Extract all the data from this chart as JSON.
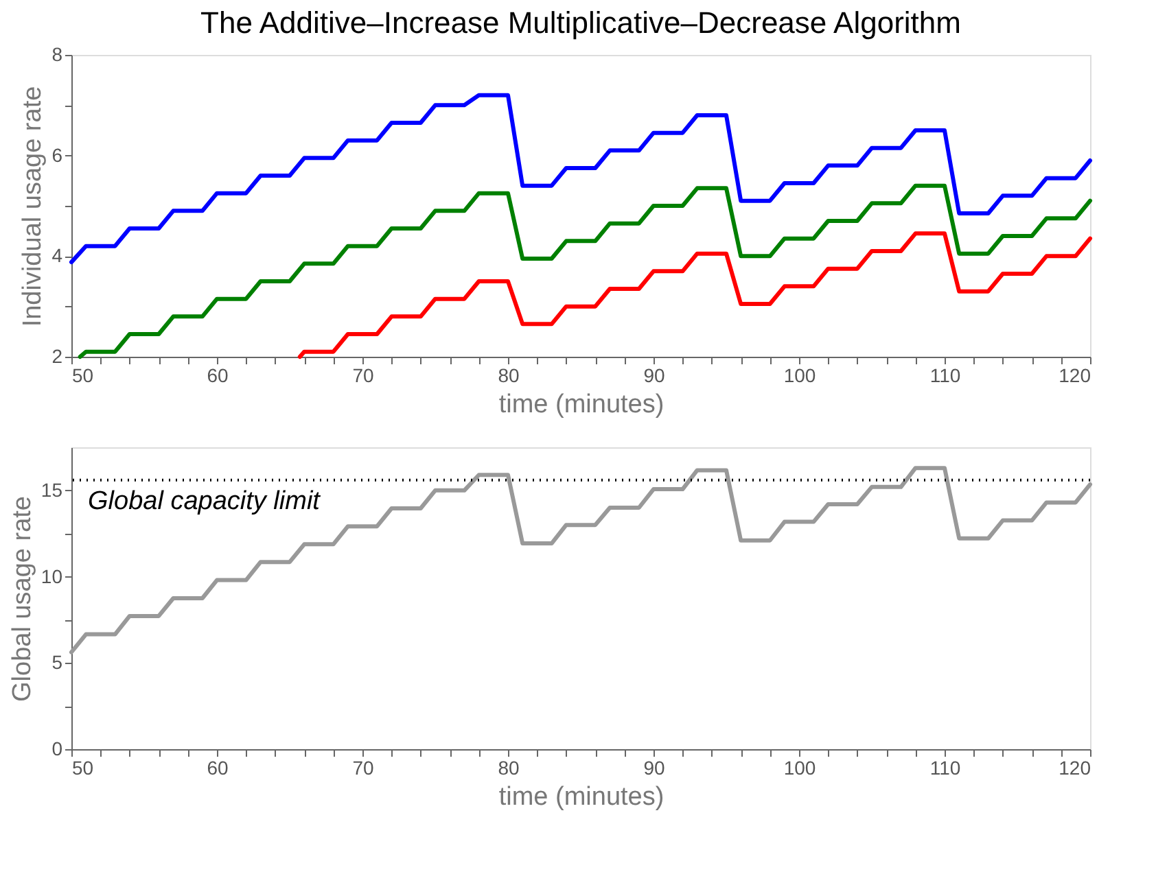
{
  "chart_data": [
    {
      "type": "line",
      "title": "The Additive–Increase Multiplicative–Decrease Algorithm",
      "xlabel": "time (minutes)",
      "ylabel": "Individual usage rate",
      "grid": false,
      "line_style": "solid",
      "marker": "none",
      "xlim": [
        50,
        120
      ],
      "xticks": [
        50,
        {
          "value": 52,
          "label": null
        },
        {
          "value": 54,
          "label": null
        },
        {
          "value": 56,
          "label": null
        },
        {
          "value": 58,
          "label": null
        },
        60,
        {
          "value": 62,
          "label": null
        },
        {
          "value": 64,
          "label": null
        },
        {
          "value": 66,
          "label": null
        },
        {
          "value": 68,
          "label": null
        },
        70,
        {
          "value": 72,
          "label": null
        },
        {
          "value": 74,
          "label": null
        },
        {
          "value": 76,
          "label": null
        },
        {
          "value": 78,
          "label": null
        },
        80,
        {
          "value": 82,
          "label": null
        },
        {
          "value": 84,
          "label": null
        },
        {
          "value": 86,
          "label": null
        },
        {
          "value": 88,
          "label": null
        },
        90,
        {
          "value": 92,
          "label": null
        },
        {
          "value": 94,
          "label": null
        },
        {
          "value": 96,
          "label": null
        },
        {
          "value": 98,
          "label": null
        },
        100,
        {
          "value": 102,
          "label": null
        },
        {
          "value": 104,
          "label": null
        },
        {
          "value": 106,
          "label": null
        },
        {
          "value": 108,
          "label": null
        },
        110,
        {
          "value": 112,
          "label": null
        },
        {
          "value": 114,
          "label": null
        },
        {
          "value": 116,
          "label": null
        },
        {
          "value": 118,
          "label": null
        },
        120
      ],
      "ylim": [
        2,
        8
      ],
      "yticks": [
        2,
        {
          "value": 3,
          "label": null
        },
        4,
        {
          "value": 5,
          "label": null
        },
        6,
        {
          "value": 7,
          "label": null
        },
        8
      ],
      "series": [
        {
          "color": "#0000ff",
          "x": [
            50,
            51,
            53,
            54,
            56,
            57,
            59,
            60,
            62,
            63,
            65,
            66,
            68,
            69,
            71,
            72,
            74,
            75,
            77,
            78,
            80,
            81,
            83,
            84,
            86,
            87,
            89,
            90,
            92,
            93,
            95,
            96,
            98,
            99,
            101,
            102,
            104,
            105,
            107,
            108,
            110,
            111,
            113,
            114,
            116,
            117,
            119,
            120
          ],
          "values": [
            3.88,
            4.2,
            4.2,
            4.55,
            4.55,
            4.9,
            4.9,
            5.25,
            5.25,
            5.6,
            5.6,
            5.95,
            5.95,
            6.3,
            6.3,
            6.65,
            6.65,
            7.0,
            7.0,
            7.2,
            7.2,
            5.4,
            5.4,
            5.75,
            5.75,
            6.1,
            6.1,
            6.45,
            6.45,
            6.8,
            6.8,
            5.1,
            5.1,
            5.45,
            5.45,
            5.8,
            5.8,
            6.15,
            6.15,
            6.5,
            6.5,
            4.85,
            4.85,
            5.2,
            5.2,
            5.55,
            5.55,
            5.9
          ]
        },
        {
          "color": "#008000",
          "x": [
            50.6,
            51,
            53,
            54,
            56,
            57,
            59,
            60,
            62,
            63,
            65,
            66,
            68,
            69,
            71,
            72,
            74,
            75,
            77,
            78,
            80,
            81,
            83,
            84,
            86,
            87,
            89,
            90,
            92,
            93,
            95,
            96,
            98,
            99,
            101,
            102,
            104,
            105,
            107,
            108,
            110,
            111,
            113,
            114,
            116,
            117,
            119,
            120
          ],
          "values": [
            2.0,
            2.1,
            2.1,
            2.45,
            2.45,
            2.8,
            2.8,
            3.15,
            3.15,
            3.5,
            3.5,
            3.85,
            3.85,
            4.2,
            4.2,
            4.55,
            4.55,
            4.9,
            4.9,
            5.25,
            5.25,
            3.95,
            3.95,
            4.3,
            4.3,
            4.65,
            4.65,
            5.0,
            5.0,
            5.35,
            5.35,
            4.0,
            4.0,
            4.35,
            4.35,
            4.7,
            4.7,
            5.05,
            5.05,
            5.4,
            5.4,
            4.05,
            4.05,
            4.4,
            4.4,
            4.75,
            4.75,
            5.1
          ]
        },
        {
          "color": "#ff0000",
          "x": [
            65.7,
            66,
            68,
            69,
            71,
            72,
            74,
            75,
            77,
            78,
            80,
            81,
            83,
            84,
            86,
            87,
            89,
            90,
            92,
            93,
            95,
            96,
            98,
            99,
            101,
            102,
            104,
            105,
            107,
            108,
            110,
            111,
            113,
            114,
            116,
            117,
            119,
            120
          ],
          "values": [
            2.0,
            2.1,
            2.1,
            2.45,
            2.45,
            2.8,
            2.8,
            3.15,
            3.15,
            3.5,
            3.5,
            2.65,
            2.65,
            3.0,
            3.0,
            3.35,
            3.35,
            3.7,
            3.7,
            4.05,
            4.05,
            3.05,
            3.05,
            3.4,
            3.4,
            3.75,
            3.75,
            4.1,
            4.1,
            4.45,
            4.45,
            3.3,
            3.3,
            3.65,
            3.65,
            4.0,
            4.0,
            4.35
          ]
        }
      ]
    },
    {
      "type": "line",
      "xlabel": "time (minutes)",
      "ylabel": "Global usage rate",
      "grid": false,
      "line_style": "solid",
      "marker": "none",
      "xlim": [
        50,
        120
      ],
      "xticks": [
        50,
        {
          "value": 52,
          "label": null
        },
        {
          "value": 54,
          "label": null
        },
        {
          "value": 56,
          "label": null
        },
        {
          "value": 58,
          "label": null
        },
        60,
        {
          "value": 62,
          "label": null
        },
        {
          "value": 64,
          "label": null
        },
        {
          "value": 66,
          "label": null
        },
        {
          "value": 68,
          "label": null
        },
        70,
        {
          "value": 72,
          "label": null
        },
        {
          "value": 74,
          "label": null
        },
        {
          "value": 76,
          "label": null
        },
        {
          "value": 78,
          "label": null
        },
        80,
        {
          "value": 82,
          "label": null
        },
        {
          "value": 84,
          "label": null
        },
        {
          "value": 86,
          "label": null
        },
        {
          "value": 88,
          "label": null
        },
        90,
        {
          "value": 92,
          "label": null
        },
        {
          "value": 94,
          "label": null
        },
        {
          "value": 96,
          "label": null
        },
        {
          "value": 98,
          "label": null
        },
        100,
        {
          "value": 102,
          "label": null
        },
        {
          "value": 104,
          "label": null
        },
        {
          "value": 106,
          "label": null
        },
        {
          "value": 108,
          "label": null
        },
        110,
        {
          "value": 112,
          "label": null
        },
        {
          "value": 114,
          "label": null
        },
        {
          "value": 116,
          "label": null
        },
        {
          "value": 118,
          "label": null
        },
        120
      ],
      "ylim": [
        0,
        17.5
      ],
      "yticks": [
        0,
        {
          "value": 2.5,
          "label": null
        },
        5,
        {
          "value": 7.5,
          "label": null
        },
        10,
        {
          "value": 12.5,
          "label": null
        },
        15
      ],
      "ref_lines": [
        {
          "axis": "y",
          "value": 15.6,
          "label": "Global capacity limit",
          "color": "#000000",
          "line_style": "dotted"
        }
      ],
      "series": [
        {
          "color": "#999999",
          "x": [
            50,
            51,
            53,
            54,
            56,
            57,
            59,
            60,
            62,
            63,
            65,
            66,
            68,
            69,
            71,
            72,
            74,
            75,
            77,
            78,
            80,
            81,
            83,
            84,
            86,
            87,
            89,
            90,
            92,
            93,
            95,
            96,
            98,
            99,
            101,
            102,
            104,
            105,
            107,
            108,
            110,
            111,
            113,
            114,
            116,
            117,
            119,
            120
          ],
          "values": [
            5.62,
            6.66,
            6.66,
            7.72,
            7.72,
            8.75,
            8.75,
            9.8,
            9.8,
            10.85,
            10.85,
            11.88,
            11.88,
            12.92,
            12.92,
            13.96,
            13.96,
            15.0,
            15.0,
            15.9,
            15.9,
            11.93,
            11.93,
            13.0,
            13.0,
            14.0,
            14.0,
            15.07,
            15.07,
            16.17,
            16.17,
            12.1,
            12.1,
            13.18,
            13.18,
            14.2,
            14.2,
            15.2,
            15.2,
            16.3,
            16.3,
            12.22,
            12.22,
            13.26,
            13.26,
            14.3,
            14.3,
            15.35
          ]
        }
      ]
    }
  ]
}
